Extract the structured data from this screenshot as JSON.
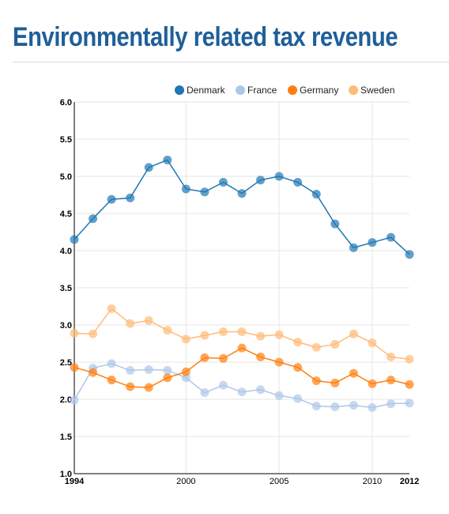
{
  "page": {
    "title": "Environmentally related tax revenue"
  },
  "chart_data": {
    "type": "line",
    "title": "Environmentally related tax revenue",
    "xlabel": "",
    "ylabel": "",
    "xlim": [
      1994,
      2012
    ],
    "ylim": [
      1.0,
      6.0
    ],
    "grid": true,
    "legend_position": "top-right",
    "x_ticks": [
      {
        "value": 1994,
        "label": "1994",
        "bold": true
      },
      {
        "value": 2000,
        "label": "2000",
        "bold": false
      },
      {
        "value": 2005,
        "label": "2005",
        "bold": false
      },
      {
        "value": 2010,
        "label": "2010",
        "bold": false
      },
      {
        "value": 2012,
        "label": "2012",
        "bold": true
      }
    ],
    "y_ticks": [
      {
        "value": 1.0,
        "label": "1.0"
      },
      {
        "value": 1.5,
        "label": "1.5"
      },
      {
        "value": 2.0,
        "label": "2.0"
      },
      {
        "value": 2.5,
        "label": "2.5"
      },
      {
        "value": 3.0,
        "label": "3.0"
      },
      {
        "value": 3.5,
        "label": "3.5"
      },
      {
        "value": 4.0,
        "label": "4.0"
      },
      {
        "value": 4.5,
        "label": "4.5"
      },
      {
        "value": 5.0,
        "label": "5.0"
      },
      {
        "value": 5.5,
        "label": "5.5"
      },
      {
        "value": 6.0,
        "label": "6.0"
      }
    ],
    "x": [
      1994,
      1995,
      1996,
      1997,
      1998,
      1999,
      2000,
      2001,
      2002,
      2003,
      2004,
      2005,
      2006,
      2007,
      2008,
      2009,
      2010,
      2011,
      2012
    ],
    "series": [
      {
        "name": "Denmark",
        "color": "#1f77b4",
        "values": [
          4.15,
          4.43,
          4.69,
          4.71,
          5.12,
          5.22,
          4.83,
          4.79,
          4.92,
          4.77,
          4.95,
          5.0,
          4.92,
          4.76,
          4.36,
          4.04,
          4.11,
          4.18,
          3.95
        ]
      },
      {
        "name": "France",
        "color": "#aec7e8",
        "values": [
          1.99,
          2.42,
          2.48,
          2.39,
          2.4,
          2.39,
          2.29,
          2.09,
          2.19,
          2.1,
          2.13,
          2.05,
          2.01,
          1.91,
          1.9,
          1.92,
          1.89,
          1.94,
          1.95
        ]
      },
      {
        "name": "Germany",
        "color": "#ff7f0e",
        "values": [
          2.43,
          2.36,
          2.26,
          2.17,
          2.16,
          2.29,
          2.37,
          2.56,
          2.55,
          2.69,
          2.57,
          2.5,
          2.43,
          2.25,
          2.22,
          2.35,
          2.21,
          2.26,
          2.2
        ]
      },
      {
        "name": "Sweden",
        "color": "#ffbb78",
        "values": [
          2.89,
          2.88,
          3.22,
          3.02,
          3.06,
          2.93,
          2.81,
          2.86,
          2.91,
          2.91,
          2.85,
          2.87,
          2.77,
          2.7,
          2.74,
          2.88,
          2.76,
          2.57,
          2.54
        ]
      }
    ]
  }
}
